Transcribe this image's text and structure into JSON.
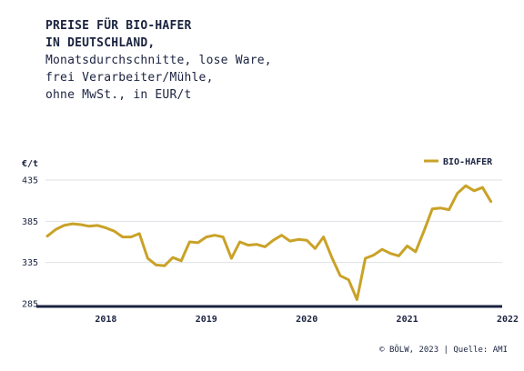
{
  "title_lines": [
    "PREISE FÜR BIO-HAFER",
    "IN DEUTSCHLAND,"
  ],
  "subtitle_lines": [
    "Monatsdurchschnitte, lose Ware,",
    "frei Verarbeiter/Mühle,",
    "ohne MwSt., in EUR/t"
  ],
  "footer": "© BÖLW, 2023 | Quelle: AMI",
  "colors": {
    "line": "#c9a227",
    "axis": "#1b2340",
    "grid": "#dfe1e6",
    "text": "#1b2340"
  },
  "chart_data": {
    "type": "line",
    "ylabel": "€/t",
    "yticks": [
      285,
      335,
      385,
      435
    ],
    "ylim": [
      285,
      435
    ],
    "year_labels": [
      "2018",
      "2019",
      "2020",
      "2021",
      "2022"
    ],
    "x_start": "2017-12",
    "legend_position": "top-right",
    "grid": true,
    "series": [
      {
        "name": "BIO-HAFER",
        "values": [
          367,
          375,
          380,
          382,
          381,
          379,
          380,
          377,
          373,
          366,
          366,
          370,
          340,
          332,
          331,
          341,
          337,
          360,
          359,
          366,
          368,
          366,
          340,
          360,
          356,
          357,
          354,
          362,
          368,
          361,
          363,
          362,
          352,
          366,
          341,
          319,
          314,
          290,
          340,
          344,
          351,
          346,
          343,
          355,
          348,
          373,
          400,
          401,
          399,
          419,
          428,
          422,
          426,
          409
        ]
      }
    ]
  }
}
